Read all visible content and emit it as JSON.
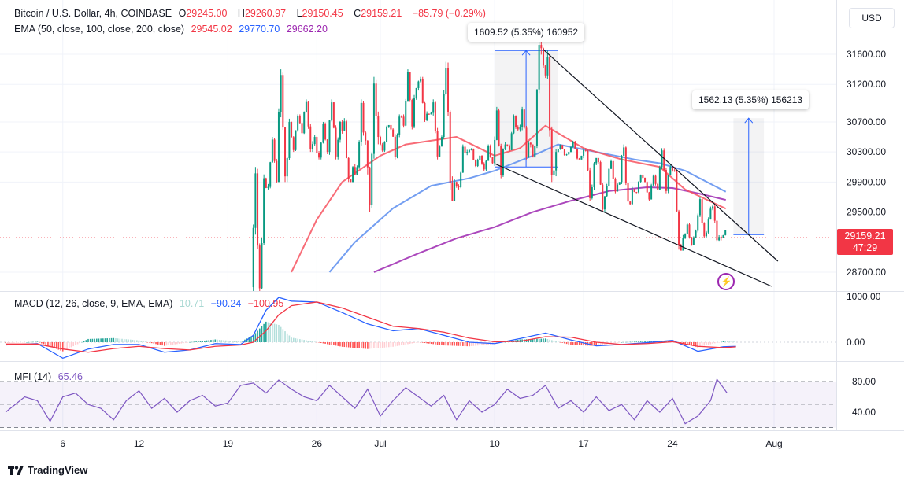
{
  "header": {
    "symbol": "Bitcoin / U.S. Dollar, 4h, COINBASE",
    "o_label": "O",
    "o": "29245.00",
    "h_label": "H",
    "h": "29260.97",
    "l_label": "L",
    "l": "29150.45",
    "c_label": "C",
    "c": "29159.21",
    "change": "−85.79 (−0.29%)",
    "ema_label": "EMA (50, close, 100, close, 200, close)",
    "ema50": "29545.02",
    "ema100": "29770.70",
    "ema200": "29662.20"
  },
  "currency_button": "USD",
  "current_price": {
    "value": "29159.21",
    "countdown": "47:29"
  },
  "macd_legend": {
    "label": "MACD (12, 26, close, 9, EMA, EMA)",
    "hist": "10.71",
    "macd": "−90.24",
    "signal": "−100.95"
  },
  "mfi_legend": {
    "label": "MFI (14)",
    "value": "65.46"
  },
  "measurements": [
    {
      "label": "1609.52 (5.35%) 160952"
    },
    {
      "label": "1562.13 (5.35%) 156213"
    }
  ],
  "branding": "TradingView",
  "colors": {
    "up": "#089981",
    "down": "#f23645",
    "ema50": "#f7525f",
    "ema100": "#5b8def",
    "ema200": "#9c27b0",
    "macd": "#2962ff",
    "signal": "#f23645",
    "mfi": "#7e57c2"
  },
  "chart_data": [
    {
      "type": "candlestick",
      "title": "Bitcoin / U.S. Dollar, 4h, COINBASE",
      "x_unit": "days offset from Jul 1 (daily aggregates of 4h candles)",
      "x_ticks": [
        {
          "d": -25,
          "label": "6"
        },
        {
          "d": -19,
          "label": "12"
        },
        {
          "d": -12,
          "label": "19"
        },
        {
          "d": -5,
          "label": "26"
        },
        {
          "d": 0,
          "label": "Jul"
        },
        {
          "d": 9,
          "label": "10"
        },
        {
          "d": 16,
          "label": "17"
        },
        {
          "d": 23,
          "label": "24"
        },
        {
          "d": 31,
          "label": "Aug"
        }
      ],
      "y_ticks": [
        "31600.00",
        "31200.00",
        "30700.00",
        "30300.00",
        "29900.00",
        "29500.00",
        "28700.00"
      ],
      "ylim": [
        28450,
        32300
      ],
      "ohlc_daily": [
        [
          -10,
          28500,
          30100,
          28400,
          29950
        ],
        [
          -9,
          29950,
          30500,
          29800,
          29900
        ],
        [
          -8,
          29900,
          31400,
          29900,
          30700
        ],
        [
          -7,
          30700,
          30800,
          30300,
          30550
        ],
        [
          -6,
          30550,
          31000,
          30300,
          30500
        ],
        [
          -5,
          30500,
          30700,
          30200,
          30300
        ],
        [
          -4,
          30300,
          31000,
          30200,
          30700
        ],
        [
          -3,
          30700,
          30750,
          29900,
          30100
        ],
        [
          -2,
          30100,
          31000,
          30050,
          30450
        ],
        [
          -1,
          30450,
          31300,
          29500,
          30500
        ],
        [
          0,
          30500,
          30650,
          30300,
          30600
        ],
        [
          1,
          30600,
          30800,
          30200,
          30650
        ],
        [
          2,
          30650,
          31400,
          30600,
          31150
        ],
        [
          3,
          31150,
          31300,
          30700,
          30800
        ],
        [
          4,
          30800,
          31000,
          30200,
          30500
        ],
        [
          5,
          30500,
          31500,
          29800,
          29900
        ],
        [
          6,
          29900,
          30400,
          29800,
          30300
        ],
        [
          7,
          30300,
          30350,
          30100,
          30250
        ],
        [
          8,
          30250,
          30400,
          30050,
          30150
        ],
        [
          9,
          30150,
          30900,
          29950,
          30400
        ],
        [
          10,
          30400,
          30800,
          30300,
          30600
        ],
        [
          11,
          30600,
          30900,
          30200,
          30400
        ],
        [
          12,
          30400,
          31800,
          30300,
          31450
        ],
        [
          13,
          31450,
          31650,
          29900,
          30300
        ],
        [
          14,
          30300,
          30400,
          30250,
          30300
        ],
        [
          15,
          30300,
          30450,
          30200,
          30250
        ],
        [
          16,
          30250,
          30350,
          29650,
          30150
        ],
        [
          17,
          30150,
          30200,
          29500,
          29850
        ],
        [
          18,
          29850,
          30200,
          29750,
          29900
        ],
        [
          19,
          29900,
          30400,
          29600,
          29800
        ],
        [
          20,
          29800,
          30000,
          29750,
          29900
        ],
        [
          21,
          29900,
          30000,
          29650,
          29800
        ],
        [
          22,
          29800,
          30350,
          29750,
          30100
        ],
        [
          23,
          30100,
          30100,
          29000,
          29150
        ],
        [
          24,
          29150,
          29350,
          29050,
          29250
        ],
        [
          25,
          29250,
          29700,
          29150,
          29400
        ],
        [
          26,
          29400,
          29600,
          29100,
          29150
        ],
        [
          27,
          29150,
          29260,
          29150,
          29159.21
        ]
      ],
      "ema50": [
        [
          -7,
          28700
        ],
        [
          -5,
          29400
        ],
        [
          -3,
          29900
        ],
        [
          0,
          30250
        ],
        [
          2,
          30400
        ],
        [
          6,
          30500
        ],
        [
          9,
          30250
        ],
        [
          11,
          30350
        ],
        [
          13,
          30650
        ],
        [
          16,
          30350
        ],
        [
          19,
          30200
        ],
        [
          22,
          30100
        ],
        [
          24,
          29800
        ],
        [
          27.2,
          29545
        ]
      ],
      "ema100": [
        [
          -4,
          28700
        ],
        [
          -2,
          29100
        ],
        [
          1,
          29550
        ],
        [
          4,
          29850
        ],
        [
          7,
          29950
        ],
        [
          9,
          30050
        ],
        [
          12,
          30250
        ],
        [
          14,
          30400
        ],
        [
          17,
          30300
        ],
        [
          20,
          30200
        ],
        [
          22,
          30150
        ],
        [
          24,
          30050
        ],
        [
          27.2,
          29770
        ]
      ],
      "ema200": [
        [
          -0.5,
          28700
        ],
        [
          3,
          28950
        ],
        [
          6,
          29150
        ],
        [
          9,
          29300
        ],
        [
          12,
          29500
        ],
        [
          15,
          29650
        ],
        [
          18,
          29780
        ],
        [
          21,
          29830
        ],
        [
          23,
          29820
        ],
        [
          25,
          29750
        ],
        [
          27.2,
          29662
        ]
      ],
      "trendlines": [
        [
          [
            12.83,
            31663
          ],
          [
            31.3,
            28846
          ]
        ],
        [
          [
            9,
            30145
          ],
          [
            30.8,
            28511
          ]
        ]
      ],
      "measure_ranges": [
        {
          "d": [
            9,
            13.95
          ],
          "price": [
            30100,
            31650
          ]
        },
        {
          "d": [
            27.8,
            30.2
          ],
          "price": [
            29200,
            30750
          ]
        }
      ]
    },
    {
      "type": "line",
      "title": "MACD (12, 26, close, 9, EMA, EMA)",
      "y_ticks": [
        "1000.00",
        "0.00"
      ],
      "x": [
        -29.5,
        -27,
        -25,
        -23,
        -21,
        -19,
        -17,
        -15,
        -13,
        -11,
        -10,
        -9,
        -8,
        -7,
        -5,
        -3,
        -1,
        1,
        3,
        5,
        7,
        9,
        11,
        13,
        15,
        17,
        19,
        21,
        23,
        25,
        27,
        28
      ],
      "series": [
        {
          "name": "MACD",
          "values": [
            -60,
            -30,
            -350,
            -150,
            -50,
            -50,
            -220,
            -170,
            -30,
            -50,
            150,
            700,
            980,
            900,
            880,
            650,
            400,
            250,
            300,
            150,
            0,
            -30,
            80,
            200,
            50,
            -80,
            -50,
            -10,
            40,
            -200,
            -100,
            -90
          ]
        },
        {
          "name": "Signal",
          "values": [
            -40,
            -40,
            -150,
            -220,
            -140,
            -90,
            -140,
            -170,
            -90,
            -60,
            0,
            250,
            600,
            800,
            880,
            750,
            550,
            350,
            300,
            220,
            90,
            10,
            20,
            120,
            110,
            0,
            -50,
            -30,
            10,
            -90,
            -120,
            -101
          ]
        }
      ]
    },
    {
      "type": "line",
      "title": "MFI (14)",
      "y_ticks": [
        "80.00",
        "40.00"
      ],
      "bands": [
        20,
        50,
        80
      ],
      "x": [
        -29.5,
        -28,
        -27,
        -26,
        -25,
        -24,
        -23,
        -22,
        -21,
        -20,
        -19,
        -18,
        -17,
        -16,
        -15,
        -14,
        -13,
        -12,
        -11,
        -10,
        -9,
        -8,
        -7,
        -6,
        -5,
        -4,
        -3,
        -2,
        -1,
        0,
        1,
        2,
        3,
        4,
        5,
        6,
        7,
        8,
        9,
        10,
        11,
        12,
        13,
        14,
        15,
        16,
        17,
        18,
        19,
        20,
        21,
        22,
        23,
        24,
        25,
        26,
        26.5,
        27,
        27.3
      ],
      "values": [
        40,
        60,
        55,
        28,
        60,
        65,
        50,
        45,
        30,
        55,
        68,
        45,
        58,
        40,
        55,
        62,
        48,
        52,
        75,
        78,
        65,
        82,
        70,
        60,
        55,
        75,
        60,
        45,
        70,
        35,
        55,
        72,
        60,
        48,
        62,
        30,
        55,
        40,
        50,
        70,
        58,
        62,
        75,
        45,
        55,
        40,
        60,
        42,
        50,
        30,
        55,
        40,
        58,
        25,
        35,
        55,
        83,
        72,
        65
      ]
    }
  ]
}
